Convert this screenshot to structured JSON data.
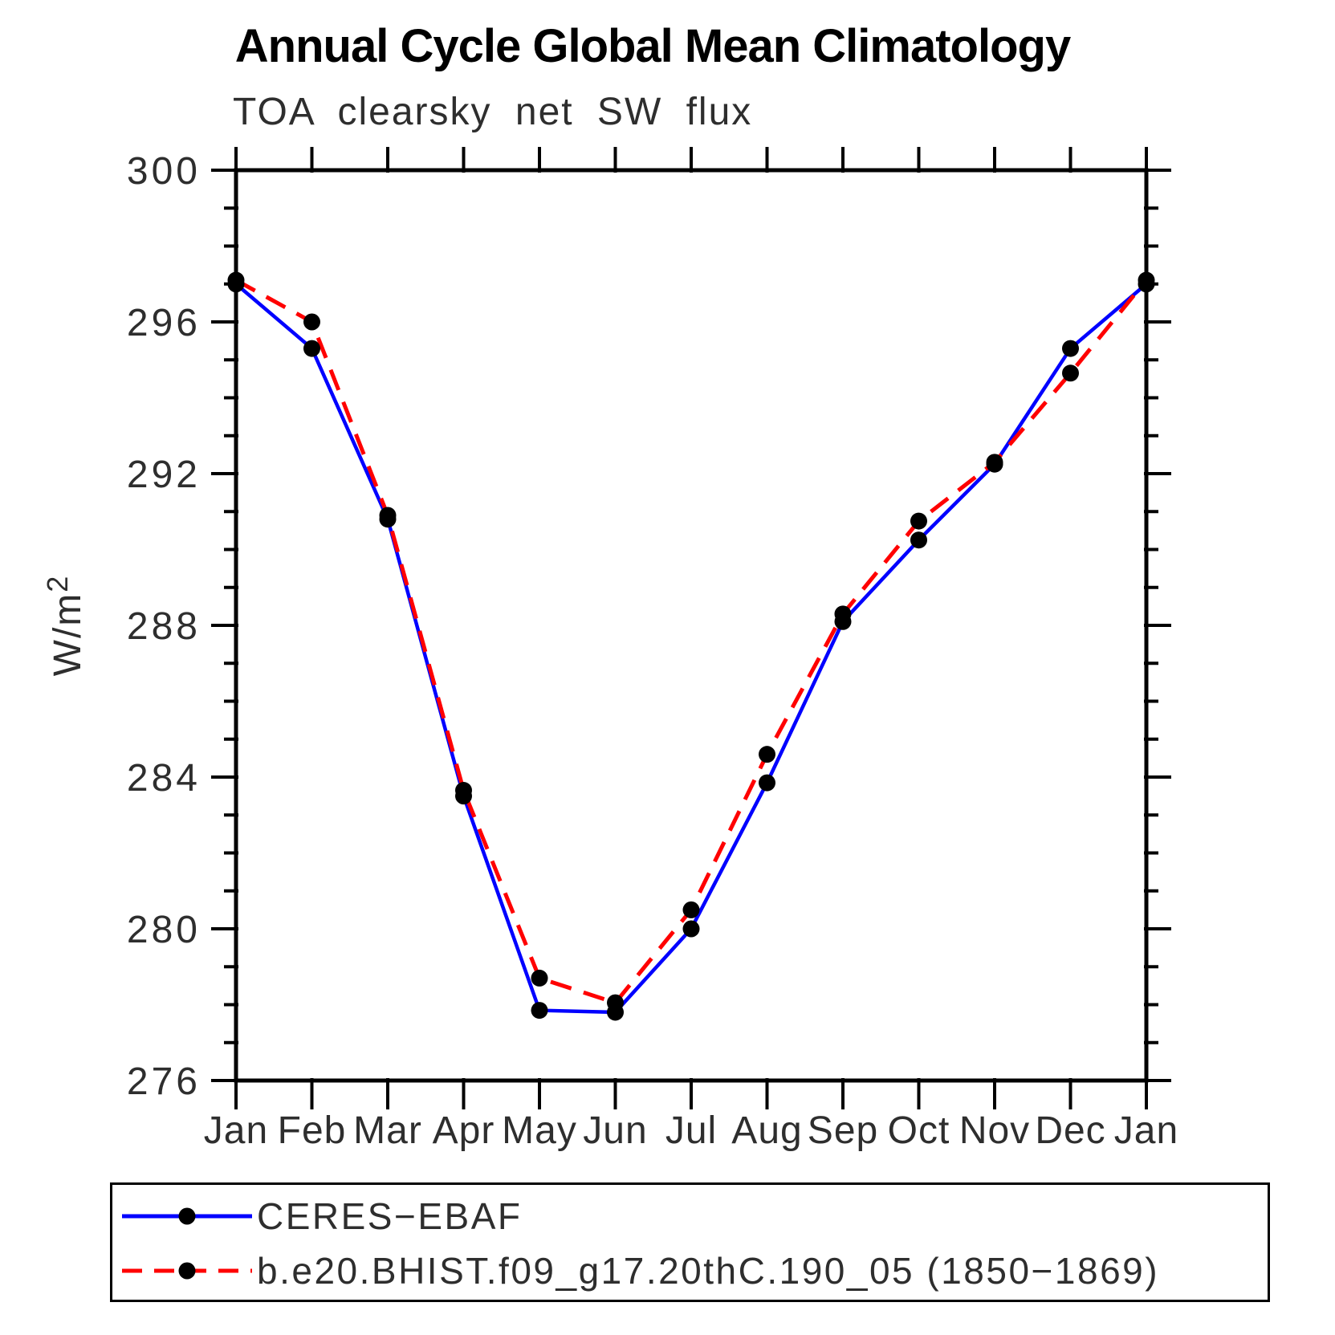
{
  "chart_data": {
    "type": "line",
    "title": "Annual Cycle Global Mean Climatology",
    "subtitle": "TOA clearsky net SW flux",
    "xlabel": "",
    "ylabel": "W/m²",
    "x_categories": [
      "Jan",
      "Feb",
      "Mar",
      "Apr",
      "May",
      "Jun",
      "Jul",
      "Aug",
      "Sep",
      "Oct",
      "Nov",
      "Dec",
      "Jan"
    ],
    "ylim": [
      276,
      300
    ],
    "ytick_major": [
      276,
      280,
      284,
      288,
      292,
      296,
      300
    ],
    "ytick_minor_step": 1,
    "grid": false,
    "legend_position": "bottom-left-box",
    "axis_color": "#000000",
    "marker_shape": "filled-circle",
    "series": [
      {
        "name": "CERES−EBAF",
        "color": "#0000ff",
        "line_style": "solid",
        "marker_color": "#000000",
        "values": [
          297.0,
          295.3,
          290.8,
          283.5,
          277.85,
          277.8,
          280.0,
          283.85,
          288.1,
          290.25,
          292.25,
          295.3,
          297.0
        ]
      },
      {
        "name": "b.e20.BHIST.f09_g17.20thC.190_05 (1850−1869)",
        "color": "#ff0000",
        "line_style": "dashed",
        "marker_color": "#000000",
        "values": [
          297.1,
          296.0,
          290.9,
          283.65,
          278.7,
          278.05,
          280.5,
          284.6,
          288.3,
          290.75,
          292.3,
          294.65,
          297.1
        ]
      }
    ]
  }
}
